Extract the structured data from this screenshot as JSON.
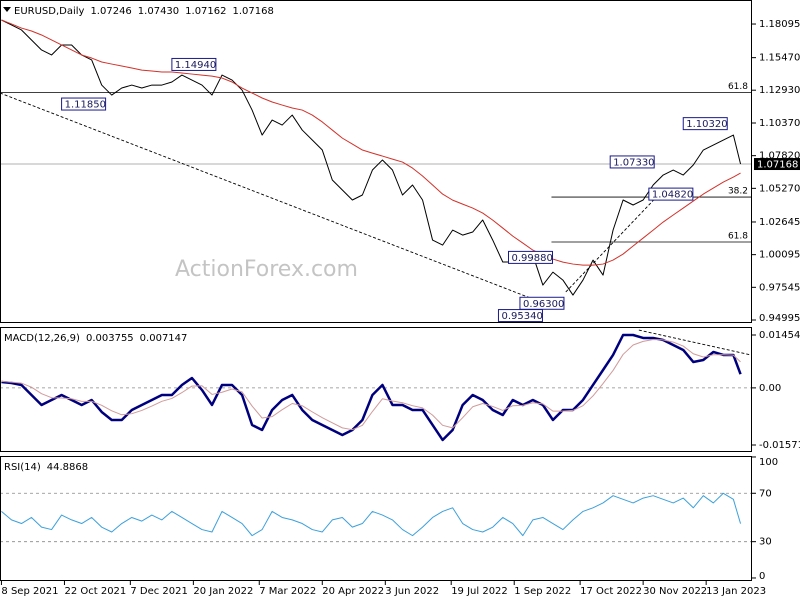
{
  "chart_data": [
    {
      "type": "line",
      "title": "EURUSD,Daily",
      "last_bar": {
        "open": 1.07246,
        "high": "1.07430",
        "low": 1.07162
      },
      "watermark": "ActionForex.com",
      "x": [
        "2021-09-08",
        "2021-09-15",
        "2021-09-22",
        "2021-09-29",
        "2021-10-06",
        "2021-10-13",
        "2021-10-20",
        "2021-10-27",
        "2021-11-03",
        "2021-11-10",
        "2021-11-17",
        "2021-11-24",
        "2021-12-01",
        "2021-12-08",
        "2021-12-15",
        "2021-12-22",
        "2021-12-29",
        "2022-01-05",
        "2022-01-12",
        "2022-01-19",
        "2022-01-26",
        "2022-02-02",
        "2022-02-09",
        "2022-02-16",
        "2022-02-23",
        "2022-03-02",
        "2022-03-09",
        "2022-03-16",
        "2022-03-23",
        "2022-03-30",
        "2022-04-06",
        "2022-04-13",
        "2022-04-20",
        "2022-04-27",
        "2022-05-04",
        "2022-05-11",
        "2022-05-18",
        "2022-05-25",
        "2022-06-01",
        "2022-06-08",
        "2022-06-15",
        "2022-06-22",
        "2022-06-29",
        "2022-07-06",
        "2022-07-13",
        "2022-07-20",
        "2022-07-27",
        "2022-08-03",
        "2022-08-10",
        "2022-08-17",
        "2022-08-24",
        "2022-08-31",
        "2022-09-07",
        "2022-09-14",
        "2022-09-21",
        "2022-09-28",
        "2022-10-05",
        "2022-10-12",
        "2022-10-19",
        "2022-10-26",
        "2022-11-02",
        "2022-11-09",
        "2022-11-16",
        "2022-11-23",
        "2022-11-30",
        "2022-12-07",
        "2022-12-14",
        "2022-12-21",
        "2022-12-28",
        "2023-01-04",
        "2023-01-11",
        "2023-01-18",
        "2023-01-25",
        "2023-02-01",
        "2023-02-06"
      ],
      "xlim": [
        "2021-09-07",
        "2023-02-14"
      ],
      "ylim": [
        0.9476,
        1.1997
      ],
      "yticks": [
        1.18095,
        {
          "value": 1.1547,
          "label": "1.15470"
        },
        {
          "value": 1.1293,
          "label": "1.12930"
        },
        {
          "value": 1.1037,
          "label": "1.10370"
        },
        {
          "value": 1.0782,
          "label": "1.07820"
        },
        {
          "value": 1.0527,
          "label": "1.05270"
        },
        1.02645,
        1.00095,
        0.97545,
        0.94995
      ],
      "series": [
        {
          "color": "#000000",
          "values": [
            1.1841,
            1.1802,
            1.1763,
            1.1685,
            1.1607,
            1.1568,
            1.1646,
            1.1646,
            1.1568,
            1.1529,
            1.1333,
            1.1255,
            1.131,
            1.1333,
            1.131,
            1.1333,
            1.1333,
            1.1357,
            1.1411,
            1.1372,
            1.1333,
            1.1255,
            1.1411,
            1.1372,
            1.1294,
            1.1138,
            1.0943,
            1.106,
            1.1021,
            1.1099,
            1.0982,
            1.0904,
            1.0826,
            1.0592,
            1.0514,
            1.0436,
            1.0475,
            1.067,
            1.0748,
            1.067,
            1.0475,
            1.0553,
            1.0436,
            1.0123,
            1.0084,
            1.0201,
            1.0162,
            1.0186,
            1.028,
            1.0123,
            0.9952,
            0.9952,
            1.0006,
            1.0006,
            0.9772,
            0.9873,
            0.9811,
            0.9694,
            0.9811,
            0.9967,
            0.985,
            1.0201,
            1.0436,
            1.0397,
            1.0436,
            1.0553,
            1.0631,
            1.067,
            1.0631,
            1.0709,
            1.0826,
            1.0865,
            1.0904,
            1.0943,
            1.07168
          ]
        },
        {
          "color": "#d2322a",
          "values": [
            1.1841,
            1.181,
            1.1778,
            1.1755,
            1.1724,
            1.1685,
            1.1646,
            1.1607,
            1.1568,
            1.1544,
            1.1513,
            1.1497,
            1.1482,
            1.1466,
            1.145,
            1.1443,
            1.1435,
            1.1435,
            1.1427,
            1.1419,
            1.1411,
            1.1403,
            1.1388,
            1.1357,
            1.131,
            1.1271,
            1.1232,
            1.1201,
            1.1177,
            1.1154,
            1.1138,
            1.1099,
            1.1045,
            1.0982,
            1.0919,
            1.0873,
            1.0826,
            1.0802,
            1.0779,
            1.0755,
            1.0732,
            1.0685,
            1.0623,
            1.0553,
            1.0482,
            1.0435,
            1.0404,
            1.0373,
            1.0334,
            1.0279,
            1.0217,
            1.0154,
            1.01,
            1.0045,
            1.0006,
            0.9975,
            0.9951,
            0.9936,
            0.9928,
            0.9928,
            0.9936,
            0.9967,
            1.0014,
            1.0077,
            1.0139,
            1.0201,
            1.0264,
            1.0319,
            1.0373,
            1.0428,
            1.0482,
            1.0529,
            1.0576,
            1.0615,
            1.0646
          ]
        }
      ],
      "levels": [
        {
          "label": "61.8",
          "value": 1.1274,
          "from": "2021-09-07"
        },
        {
          "label": "38.2",
          "value": 1.0459,
          "from": "2022-09-27"
        },
        {
          "label": "61.8",
          "value": 1.0108,
          "from": "2022-09-27"
        }
      ],
      "trendlines": [
        {
          "x": [
            "2021-09-07",
            "2022-09-25"
          ],
          "y": [
            1.1271,
            0.9616
          ]
        },
        {
          "x": [
            "2022-10-07",
            "2022-12-14"
          ],
          "y": [
            0.9718,
            1.0514
          ]
        }
      ],
      "annotations": [
        {
          "text": "1.11850",
          "x": "2021-10-20",
          "y": 1.1185
        },
        {
          "text": "1.14940",
          "x": "2022-01-05",
          "y": 1.1494
        },
        {
          "text": "1.10320",
          "x": "2022-12-28",
          "y": 1.1032
        },
        {
          "text": "1.07330",
          "x": "2022-11-07",
          "y": 1.0733
        },
        {
          "text": "1.04820",
          "x": "2022-12-04",
          "y": 1.0482
        },
        {
          "text": "0.99880",
          "x": "2022-08-28",
          "y": 0.9988
        },
        {
          "text": "0.96300",
          "x": "2022-09-05",
          "y": 0.963
        },
        {
          "text": "0.95340",
          "x": "2022-08-21",
          "y": 0.9534
        }
      ]
    },
    {
      "type": "line",
      "title": "MACD(12,26,9)",
      "x": [
        "2021-09-08",
        "2021-09-15",
        "2021-09-22",
        "2021-09-29",
        "2021-10-06",
        "2021-10-13",
        "2021-10-20",
        "2021-10-27",
        "2021-11-03",
        "2021-11-10",
        "2021-11-17",
        "2021-11-24",
        "2021-12-01",
        "2021-12-08",
        "2021-12-15",
        "2021-12-22",
        "2021-12-29",
        "2022-01-05",
        "2022-01-12",
        "2022-01-19",
        "2022-01-26",
        "2022-02-02",
        "2022-02-09",
        "2022-02-16",
        "2022-02-23",
        "2022-03-02",
        "2022-03-09",
        "2022-03-16",
        "2022-03-23",
        "2022-03-30",
        "2022-04-06",
        "2022-04-13",
        "2022-04-20",
        "2022-04-27",
        "2022-05-04",
        "2022-05-11",
        "2022-05-18",
        "2022-05-25",
        "2022-06-01",
        "2022-06-08",
        "2022-06-15",
        "2022-06-22",
        "2022-06-29",
        "2022-07-06",
        "2022-07-13",
        "2022-07-20",
        "2022-07-27",
        "2022-08-03",
        "2022-08-10",
        "2022-08-17",
        "2022-08-24",
        "2022-08-31",
        "2022-09-07",
        "2022-09-14",
        "2022-09-21",
        "2022-09-28",
        "2022-10-05",
        "2022-10-12",
        "2022-10-19",
        "2022-10-26",
        "2022-11-02",
        "2022-11-09",
        "2022-11-16",
        "2022-11-23",
        "2022-11-30",
        "2022-12-07",
        "2022-12-14",
        "2022-12-21",
        "2022-12-28",
        "2023-01-04",
        "2023-01-11",
        "2023-01-18",
        "2023-01-25",
        "2023-02-01",
        "2023-02-06"
      ],
      "xlim": [
        "2021-09-07",
        "2023-02-14"
      ],
      "ylim": [
        -0.01764,
        0.01675
      ],
      "yticks": [
        0.014549,
        {
          "value": 0,
          "label": "0.00"
        },
        -0.015712
      ],
      "levels": [
        0
      ],
      "series": [
        {
          "color": "#00007f",
          "values": [
            0.00162,
            0.00135,
            0.0008,
            -0.00195,
            -0.0047,
            -0.00333,
            -0.00195,
            -0.00333,
            -0.0047,
            -0.00333,
            -0.00663,
            -0.00883,
            -0.00883,
            -0.00608,
            -0.0047,
            -0.00333,
            -0.00195,
            -0.00195,
            0.0008,
            0.00272,
            -0.00058,
            -0.0047,
            0.0008,
            0.0008,
            -0.00195,
            -0.01021,
            -0.01158,
            -0.00608,
            -0.00333,
            -0.00195,
            -0.00608,
            -0.00883,
            -0.01021,
            -0.01158,
            -0.01296,
            -0.01158,
            -0.00883,
            -0.00195,
            0.0008,
            -0.0047,
            -0.0047,
            -0.00608,
            -0.00608,
            -0.01021,
            -0.01433,
            -0.01158,
            -0.0047,
            -0.00195,
            -0.00333,
            -0.00608,
            -0.00746,
            -0.00333,
            -0.0047,
            -0.00333,
            -0.0047,
            -0.00883,
            -0.00608,
            -0.00608,
            -0.00333,
            0.0008,
            0.00492,
            0.00905,
            0.01455,
            0.01455,
            0.01373,
            0.01373,
            0.01318,
            0.0118,
            0.01043,
            0.00713,
            0.00768,
            0.00988,
            0.00905,
            0.00905,
            0.003755
          ]
        },
        {
          "color": "#d09a9a",
          "values": [
            0.0018,
            0.0016,
            0.0013,
            0.0002,
            -0.0016,
            -0.0027,
            -0.0028,
            -0.003,
            -0.0037,
            -0.0037,
            -0.0048,
            -0.0063,
            -0.0074,
            -0.0071,
            -0.0062,
            -0.005,
            -0.0037,
            -0.0029,
            -0.0013,
            0.0005,
            0.0006,
            -0.0018,
            -0.0012,
            -0.0003,
            -0.0011,
            -0.005,
            -0.0083,
            -0.0079,
            -0.006,
            -0.0043,
            -0.0049,
            -0.0066,
            -0.0082,
            -0.0096,
            -0.011,
            -0.0115,
            -0.0103,
            -0.0065,
            -0.003,
            -0.0036,
            -0.0041,
            -0.0049,
            -0.0055,
            -0.0075,
            -0.0103,
            -0.011,
            -0.0082,
            -0.0052,
            -0.0043,
            -0.0051,
            -0.0062,
            -0.0049,
            -0.0048,
            -0.0041,
            -0.0044,
            -0.0064,
            -0.0064,
            -0.0062,
            -0.0049,
            -0.0022,
            0.0012,
            0.0048,
            0.0092,
            0.0118,
            0.0128,
            0.0133,
            0.0132,
            0.0126,
            0.0115,
            0.0094,
            0.0085,
            0.0091,
            0.0091,
            0.009,
            0.007147
          ]
        }
      ],
      "trendlines": [
        {
          "x": [
            "2022-11-27",
            "2023-02-14"
          ],
          "y": [
            0.0159,
            0.009
          ]
        }
      ]
    },
    {
      "type": "line",
      "title": "RSI(14)",
      "x": [
        "2021-09-08",
        "2021-09-15",
        "2021-09-22",
        "2021-09-29",
        "2021-10-06",
        "2021-10-13",
        "2021-10-20",
        "2021-10-27",
        "2021-11-03",
        "2021-11-10",
        "2021-11-17",
        "2021-11-24",
        "2021-12-01",
        "2021-12-08",
        "2021-12-15",
        "2021-12-22",
        "2021-12-29",
        "2022-01-05",
        "2022-01-12",
        "2022-01-19",
        "2022-01-26",
        "2022-02-02",
        "2022-02-09",
        "2022-02-16",
        "2022-02-23",
        "2022-03-02",
        "2022-03-09",
        "2022-03-16",
        "2022-03-23",
        "2022-03-30",
        "2022-04-06",
        "2022-04-13",
        "2022-04-20",
        "2022-04-27",
        "2022-05-04",
        "2022-05-11",
        "2022-05-18",
        "2022-05-25",
        "2022-06-01",
        "2022-06-08",
        "2022-06-15",
        "2022-06-22",
        "2022-06-29",
        "2022-07-06",
        "2022-07-13",
        "2022-07-20",
        "2022-07-27",
        "2022-08-03",
        "2022-08-10",
        "2022-08-17",
        "2022-08-24",
        "2022-08-31",
        "2022-09-07",
        "2022-09-14",
        "2022-09-21",
        "2022-09-28",
        "2022-10-05",
        "2022-10-12",
        "2022-10-19",
        "2022-10-26",
        "2022-11-02",
        "2022-11-09",
        "2022-11-16",
        "2022-11-23",
        "2022-11-30",
        "2022-12-07",
        "2022-12-14",
        "2022-12-21",
        "2022-12-28",
        "2023-01-04",
        "2023-01-11",
        "2023-01-18",
        "2023-01-25",
        "2023-02-01",
        "2023-02-06"
      ],
      "xlim": [
        "2021-09-07",
        "2023-02-14"
      ],
      "xticks": [
        {
          "value": "2021-09-08",
          "label": "8 Sep 2021"
        },
        {
          "value": "2021-10-22",
          "label": "22 Oct 2021"
        },
        {
          "value": "2021-12-07",
          "label": "7 Dec 2021"
        },
        {
          "value": "2022-01-20",
          "label": "20 Jan 2022"
        },
        {
          "value": "2022-03-07",
          "label": "7 Mar 2022"
        },
        {
          "value": "2022-04-20",
          "label": "20 Apr 2022"
        },
        {
          "value": "2022-06-03",
          "label": "3 Jun 2022"
        },
        {
          "value": "2022-07-19",
          "label": "19 Jul 2022"
        },
        {
          "value": "2022-09-01",
          "label": "1 Sep 2022"
        },
        {
          "value": "2022-10-17",
          "label": "17 Oct 2022"
        },
        {
          "value": "2022-11-30",
          "label": "30 Nov 2022"
        },
        {
          "value": "2023-01-13",
          "label": "13 Jan 2023"
        }
      ],
      "ylim": [
        -2.5,
        100.8
      ],
      "yticks": [
        100,
        70,
        30,
        0
      ],
      "levels": [
        70,
        30
      ],
      "series": [
        {
          "color": "#3ca0dc",
          "values": [
            55,
            48,
            45,
            50,
            42,
            40,
            52,
            48,
            45,
            50,
            42,
            38,
            45,
            50,
            47,
            52,
            48,
            55,
            50,
            45,
            40,
            38,
            55,
            50,
            45,
            35,
            40,
            55,
            50,
            48,
            45,
            40,
            38,
            48,
            50,
            42,
            45,
            55,
            52,
            48,
            40,
            35,
            42,
            50,
            55,
            58,
            45,
            40,
            38,
            42,
            50,
            45,
            35,
            48,
            50,
            45,
            40,
            48,
            55,
            58,
            62,
            68,
            65,
            62,
            66,
            68,
            65,
            62,
            66,
            58,
            68,
            62,
            70,
            65,
            44.8868
          ]
        }
      ]
    }
  ]
}
